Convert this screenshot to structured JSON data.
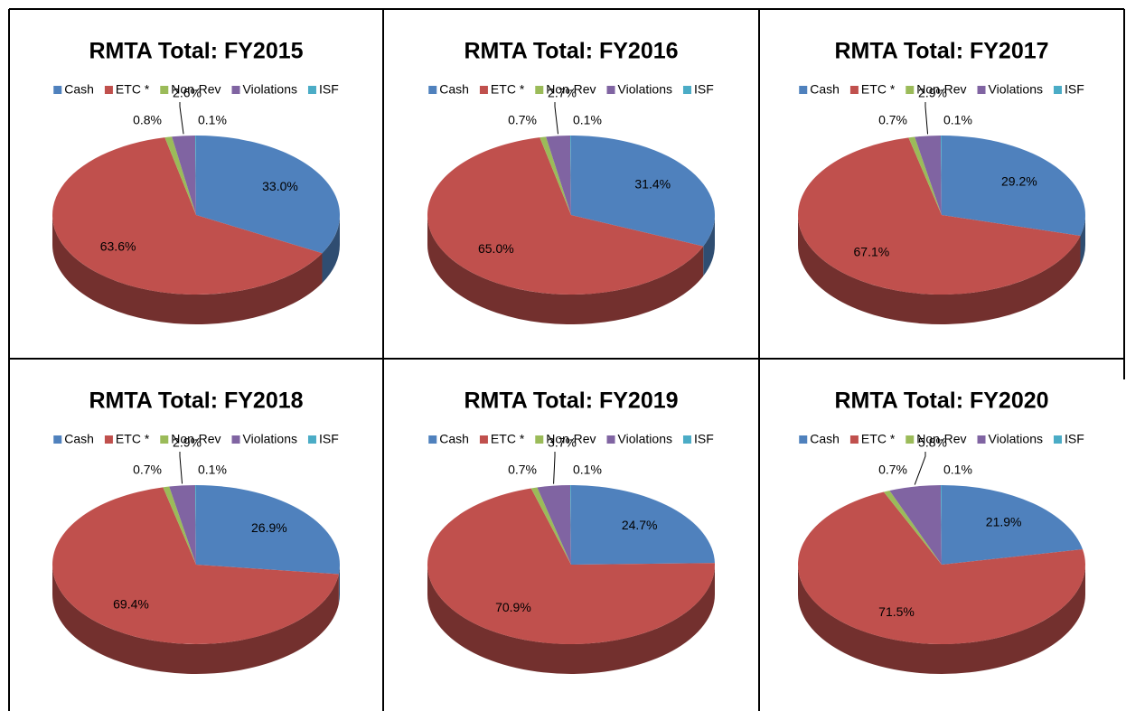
{
  "chart_data": [
    {
      "type": "pie",
      "title": "RMTA Total: FY2015",
      "categories": [
        "Cash",
        "ETC *",
        "Non-Rev",
        "Violations",
        "ISF"
      ],
      "values": [
        33.0,
        63.6,
        0.8,
        2.6,
        0.1
      ],
      "value_labels": [
        "33.0%",
        "63.6%",
        "0.8%",
        "2.6%",
        "0.1%"
      ],
      "colors": [
        "#4f81bd",
        "#c0504d",
        "#9bbb59",
        "#8064a2",
        "#4bacc6"
      ],
      "legend": "top"
    },
    {
      "type": "pie",
      "title": "RMTA Total: FY2016",
      "categories": [
        "Cash",
        "ETC *",
        "Non-Rev",
        "Violations",
        "ISF"
      ],
      "values": [
        31.4,
        65.0,
        0.7,
        2.7,
        0.1
      ],
      "value_labels": [
        "31.4%",
        "65.0%",
        "0.7%",
        "2.7%",
        "0.1%"
      ],
      "colors": [
        "#4f81bd",
        "#c0504d",
        "#9bbb59",
        "#8064a2",
        "#4bacc6"
      ],
      "legend": "top"
    },
    {
      "type": "pie",
      "title": "RMTA Total: FY2017",
      "categories": [
        "Cash",
        "ETC *",
        "Non-Rev",
        "Violations",
        "ISF"
      ],
      "values": [
        29.2,
        67.1,
        0.7,
        2.9,
        0.1
      ],
      "value_labels": [
        "29.2%",
        "67.1%",
        "0.7%",
        "2.9%",
        "0.1%"
      ],
      "colors": [
        "#4f81bd",
        "#c0504d",
        "#9bbb59",
        "#8064a2",
        "#4bacc6"
      ],
      "legend": "top"
    },
    {
      "type": "pie",
      "title": "RMTA Total: FY2018",
      "categories": [
        "Cash",
        "ETC *",
        "Non-Rev",
        "Violations",
        "ISF"
      ],
      "values": [
        26.9,
        69.4,
        0.7,
        2.9,
        0.1
      ],
      "value_labels": [
        "26.9%",
        "69.4%",
        "0.7%",
        "2.9%",
        "0.1%"
      ],
      "colors": [
        "#4f81bd",
        "#c0504d",
        "#9bbb59",
        "#8064a2",
        "#4bacc6"
      ],
      "legend": "top"
    },
    {
      "type": "pie",
      "title": "RMTA Total: FY2019",
      "categories": [
        "Cash",
        "ETC *",
        "Non-Rev",
        "Violations",
        "ISF"
      ],
      "values": [
        24.7,
        70.9,
        0.7,
        3.7,
        0.1
      ],
      "value_labels": [
        "24.7%",
        "70.9%",
        "0.7%",
        "3.7%",
        "0.1%"
      ],
      "colors": [
        "#4f81bd",
        "#c0504d",
        "#9bbb59",
        "#8064a2",
        "#4bacc6"
      ],
      "legend": "top"
    },
    {
      "type": "pie",
      "title": "RMTA Total: FY2020",
      "categories": [
        "Cash",
        "ETC *",
        "Non-Rev",
        "Violations",
        "ISF"
      ],
      "values": [
        21.9,
        71.5,
        0.7,
        5.8,
        0.1
      ],
      "value_labels": [
        "21.9%",
        "71.5%",
        "0.7%",
        "5.8%",
        "0.1%"
      ],
      "colors": [
        "#4f81bd",
        "#c0504d",
        "#9bbb59",
        "#8064a2",
        "#4bacc6"
      ],
      "legend": "top"
    }
  ]
}
